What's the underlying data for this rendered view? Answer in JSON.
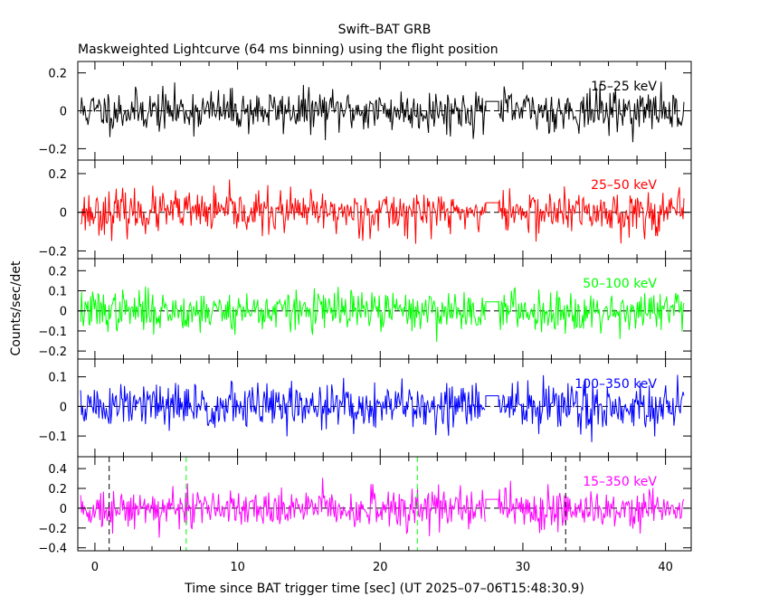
{
  "chart_data": {
    "type": "line",
    "title": "Swift–BAT GRB",
    "subtitle": "Maskweighted Lightcurve (64 ms binning) using the flight position",
    "xlabel": "Time since BAT trigger time [sec] (UT 2025–07–06T15:48:30.9)",
    "ylabel": "Counts/sec/det",
    "xlim": [
      -1.2,
      41.8
    ],
    "x_ticks": [
      0,
      10,
      20,
      30,
      40
    ],
    "x_tick_labels": [
      "0",
      "10",
      "20",
      "30",
      "40"
    ],
    "gap": [
      27.4,
      28.3
    ],
    "reference_lines": [
      1.0,
      6.4,
      22.6,
      33.0
    ],
    "panels": [
      {
        "name": "15–25 keV",
        "color": "#000000",
        "ylim": [
          -0.26,
          0.26
        ],
        "yticks": [
          -0.2,
          0,
          0.2
        ],
        "ytick_labels": [
          "−0.2",
          "0",
          "0.2"
        ],
        "noise_sigma": 0.055,
        "seed": 11
      },
      {
        "name": "25–50 keV",
        "color": "#ff0000",
        "ylim": [
          -0.24,
          0.27
        ],
        "yticks": [
          -0.2,
          0,
          0.2
        ],
        "ytick_labels": [
          "−0.2",
          "0",
          "0.2"
        ],
        "noise_sigma": 0.055,
        "seed": 23
      },
      {
        "name": "50–100 keV",
        "color": "#00ff00",
        "ylim": [
          -0.24,
          0.26
        ],
        "yticks": [
          -0.2,
          -0.1,
          0,
          0.1,
          0.2
        ],
        "ytick_labels": [
          "−0.2",
          "−0.1",
          "0",
          "0.1",
          "0.2"
        ],
        "noise_sigma": 0.05,
        "seed": 37
      },
      {
        "name": "100–350 keV",
        "color": "#0000ff",
        "ylim": [
          -0.17,
          0.16
        ],
        "yticks": [
          -0.1,
          0,
          0.1
        ],
        "ytick_labels": [
          "−0.1",
          "0",
          "0.1"
        ],
        "noise_sigma": 0.04,
        "seed": 51
      },
      {
        "name": "15–350 keV",
        "color": "#ff00ff",
        "ylim": [
          -0.43,
          0.52
        ],
        "yticks": [
          -0.4,
          -0.2,
          0,
          0.2,
          0.4
        ],
        "ytick_labels": [
          "−0.4",
          "−0.2",
          "0",
          "0.2",
          "0.4"
        ],
        "noise_sigma": 0.1,
        "seed": 73
      }
    ]
  }
}
